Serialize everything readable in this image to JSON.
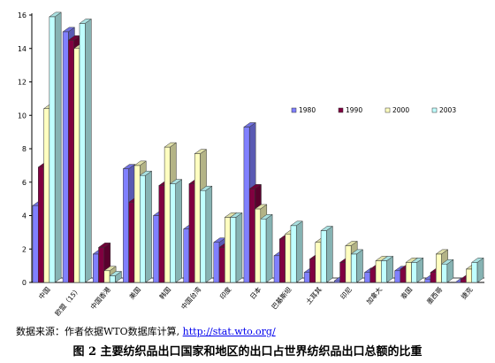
{
  "chart_data": {
    "type": "bar",
    "categories": [
      "中国",
      "欧盟（15）",
      "中国香港",
      "美国",
      "韩国",
      "中国台湾",
      "印度",
      "日本",
      "巴基斯坦",
      "土耳其",
      "印尼",
      "加拿大",
      "泰国",
      "墨西哥",
      "捷克"
    ],
    "series": [
      {
        "name": "1980",
        "color": "#8080ff",
        "values": [
          4.6,
          15.0,
          1.7,
          6.8,
          4.0,
          3.2,
          2.4,
          9.3,
          1.6,
          0.6,
          0.1,
          0.6,
          0.7,
          0.2,
          0.0
        ]
      },
      {
        "name": "1990",
        "color": "#800040",
        "values": [
          6.9,
          14.5,
          2.1,
          4.8,
          5.8,
          5.9,
          2.1,
          5.6,
          2.6,
          1.4,
          1.2,
          0.8,
          0.8,
          0.6,
          0.2
        ]
      },
      {
        "name": "2000",
        "color": "#ffffc0",
        "values": [
          10.4,
          14.0,
          0.7,
          7.0,
          8.1,
          7.7,
          3.9,
          4.4,
          2.9,
          2.4,
          2.2,
          1.3,
          1.2,
          1.7,
          0.8
        ]
      },
      {
        "name": "2003",
        "color": "#c0ffff",
        "values": [
          15.9,
          15.5,
          0.4,
          6.4,
          5.9,
          5.5,
          3.9,
          3.8,
          3.4,
          3.1,
          1.7,
          1.3,
          1.2,
          1.1,
          1.2
        ]
      }
    ],
    "yticks": [
      0,
      2,
      4,
      6,
      8,
      10,
      12,
      14,
      16
    ],
    "ylim": [
      0,
      16
    ],
    "legend_position": "right-middle",
    "three_d": true
  },
  "source": {
    "text": "数据来源：作者依据WTO数据库计算, ",
    "link": "http://stat.wto.org/"
  },
  "caption": "图 2  主要纺织品出口国家和地区的出口占世界纺织品出口总额的比重"
}
